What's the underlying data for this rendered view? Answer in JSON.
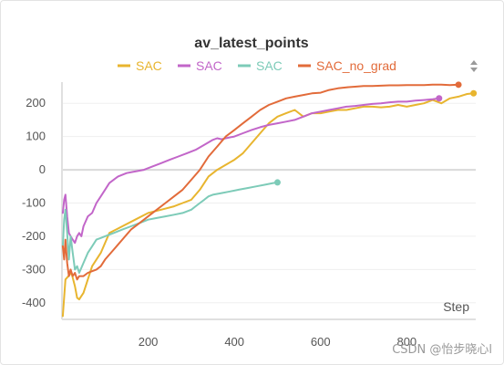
{
  "chart_data": {
    "type": "line",
    "title": "av_latest_points",
    "xlabel": "Step",
    "ylabel": "",
    "xlim": [
      0,
      960
    ],
    "ylim": [
      -450,
      250
    ],
    "xticks": [
      200,
      400,
      600,
      800
    ],
    "yticks": [
      -400,
      -300,
      -200,
      -100,
      0,
      100,
      200
    ],
    "grid": true,
    "legend_position": "top",
    "series": [
      {
        "name": "SAC",
        "color": "#e8b52f",
        "x": [
          2,
          8,
          15,
          22,
          30,
          35,
          40,
          50,
          70,
          90,
          110,
          140,
          170,
          200,
          230,
          260,
          280,
          300,
          320,
          340,
          360,
          380,
          400,
          420,
          440,
          460,
          480,
          500,
          520,
          540,
          560,
          580,
          600,
          620,
          640,
          660,
          680,
          700,
          720,
          740,
          760,
          780,
          800,
          820,
          840,
          860,
          880,
          900,
          920,
          940,
          955
        ],
        "y": [
          -440,
          -330,
          -320,
          -310,
          -350,
          -385,
          -390,
          -370,
          -290,
          -250,
          -190,
          -170,
          -150,
          -130,
          -120,
          -110,
          -100,
          -90,
          -60,
          -20,
          0,
          15,
          30,
          50,
          80,
          110,
          140,
          160,
          170,
          180,
          160,
          170,
          170,
          175,
          180,
          180,
          185,
          190,
          190,
          188,
          190,
          195,
          190,
          195,
          200,
          210,
          200,
          215,
          220,
          228,
          230
        ]
      },
      {
        "name": "SAC",
        "color": "#c266c9",
        "x": [
          2,
          5,
          8,
          12,
          16,
          20,
          25,
          30,
          35,
          40,
          45,
          50,
          60,
          70,
          80,
          90,
          100,
          110,
          130,
          150,
          170,
          190,
          210,
          230,
          250,
          270,
          290,
          310,
          330,
          350,
          360,
          370,
          380,
          400,
          420,
          440,
          460,
          480,
          500,
          520,
          540,
          560,
          580,
          600,
          620,
          640,
          660,
          680,
          700,
          720,
          740,
          760,
          780,
          800,
          820,
          840,
          860,
          875
        ],
        "y": [
          -130,
          -90,
          -75,
          -140,
          -190,
          -200,
          -210,
          -220,
          -200,
          -190,
          -200,
          -170,
          -140,
          -130,
          -100,
          -80,
          -60,
          -40,
          -20,
          -10,
          -5,
          0,
          10,
          20,
          30,
          40,
          50,
          60,
          75,
          90,
          95,
          92,
          95,
          100,
          110,
          120,
          128,
          135,
          140,
          145,
          150,
          160,
          170,
          175,
          180,
          185,
          190,
          192,
          195,
          198,
          200,
          203,
          205,
          205,
          208,
          210,
          212,
          215
        ]
      },
      {
        "name": "SAC",
        "color": "#7dcbb8",
        "x": [
          2,
          5,
          8,
          12,
          16,
          20,
          25,
          30,
          35,
          40,
          45,
          50,
          60,
          70,
          80,
          90,
          100,
          120,
          140,
          160,
          180,
          200,
          220,
          240,
          260,
          280,
          300,
          310,
          320,
          330,
          340,
          350,
          370,
          390,
          410,
          430,
          450,
          470,
          490,
          500
        ],
        "y": [
          -230,
          -150,
          -120,
          -190,
          -270,
          -200,
          -250,
          -300,
          -290,
          -310,
          -295,
          -280,
          -250,
          -230,
          -210,
          -205,
          -200,
          -190,
          -180,
          -170,
          -160,
          -150,
          -145,
          -140,
          -135,
          -130,
          -120,
          -110,
          -100,
          -90,
          -80,
          -75,
          -70,
          -65,
          -60,
          -55,
          -50,
          -45,
          -40,
          -38
        ]
      },
      {
        "name": "SAC_no_grad",
        "color": "#e26b3a",
        "x": [
          2,
          5,
          8,
          12,
          16,
          20,
          25,
          30,
          35,
          40,
          50,
          60,
          70,
          80,
          90,
          100,
          120,
          140,
          160,
          180,
          200,
          220,
          240,
          260,
          280,
          300,
          320,
          340,
          360,
          380,
          400,
          420,
          440,
          460,
          480,
          500,
          520,
          540,
          560,
          580,
          600,
          620,
          640,
          660,
          680,
          700,
          720,
          740,
          760,
          780,
          800,
          820,
          840,
          860,
          880,
          900,
          920
        ],
        "y": [
          -230,
          -270,
          -210,
          -280,
          -320,
          -300,
          -320,
          -310,
          -330,
          -320,
          -320,
          -310,
          -305,
          -300,
          -290,
          -270,
          -240,
          -210,
          -180,
          -160,
          -140,
          -120,
          -100,
          -80,
          -60,
          -30,
          0,
          40,
          70,
          100,
          120,
          140,
          160,
          180,
          195,
          205,
          215,
          220,
          225,
          230,
          232,
          240,
          245,
          248,
          250,
          252,
          252,
          253,
          254,
          254,
          255,
          255,
          255,
          256,
          256,
          255,
          256
        ]
      }
    ]
  },
  "controls": {
    "legend_toggle_icon": "up-down-arrows-icon"
  },
  "watermark": "CSDN @怡步晓心l"
}
